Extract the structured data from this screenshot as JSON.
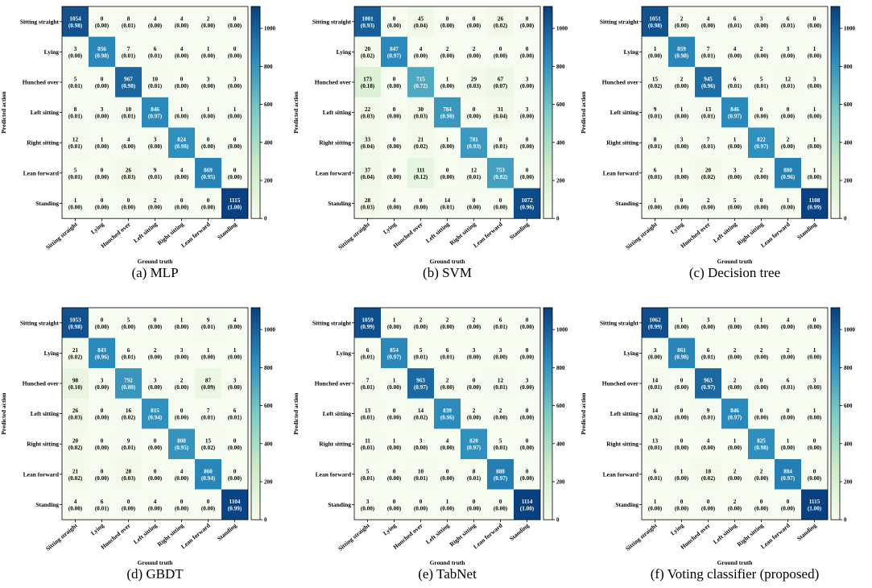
{
  "chart_data": {
    "type": "heatmap",
    "class_labels": [
      "Sitting straight",
      "Lying",
      "Hunched over",
      "Left sitting",
      "Right sitting",
      "Lean forward",
      "Standing"
    ],
    "xlabel": "Ground truth",
    "ylabel": "Predicted action",
    "colorbar": {
      "min": 0,
      "max": 1115,
      "ticks": [
        0,
        200,
        400,
        600,
        800,
        1000
      ],
      "colors": [
        "#f7fcf0",
        "#ccebc5",
        "#7bccc4",
        "#2b8cbe",
        "#084081"
      ]
    },
    "panels": [
      {
        "caption": "(a) MLP",
        "counts": [
          [
            1054,
            0,
            8,
            4,
            4,
            2,
            0
          ],
          [
            3,
            856,
            7,
            6,
            4,
            1,
            0
          ],
          [
            5,
            0,
            967,
            10,
            0,
            3,
            3
          ],
          [
            8,
            3,
            10,
            846,
            1,
            1,
            1
          ],
          [
            12,
            1,
            4,
            3,
            824,
            0,
            0
          ],
          [
            5,
            0,
            26,
            9,
            4,
            869,
            0
          ],
          [
            1,
            0,
            0,
            2,
            0,
            0,
            1115
          ]
        ],
        "rates": [
          [
            "0.98",
            "0.00",
            "0.01",
            "0.00",
            "0.00",
            "0.00",
            "0.00"
          ],
          [
            "0.00",
            "0.98",
            "0.01",
            "0.01",
            "0.00",
            "0.00",
            "0.00"
          ],
          [
            "0.01",
            "0.00",
            "0.98",
            "0.01",
            "0.00",
            "0.00",
            "0.00"
          ],
          [
            "0.01",
            "0.00",
            "0.01",
            "0.97",
            "0.00",
            "0.00",
            "0.00"
          ],
          [
            "0.01",
            "0.00",
            "0.00",
            "0.00",
            "0.98",
            "0.00",
            "0.00"
          ],
          [
            "0.01",
            "0.00",
            "0.03",
            "0.01",
            "0.00",
            "0.95",
            "0.00"
          ],
          [
            "0.00",
            "0.00",
            "0.00",
            "0.00",
            "0.00",
            "0.00",
            "1.00"
          ]
        ]
      },
      {
        "caption": "(b) SVM",
        "counts": [
          [
            1001,
            0,
            45,
            0,
            0,
            26,
            0
          ],
          [
            20,
            847,
            4,
            2,
            2,
            0,
            0
          ],
          [
            173,
            0,
            715,
            1,
            29,
            67,
            3
          ],
          [
            22,
            0,
            30,
            784,
            0,
            31,
            3
          ],
          [
            33,
            0,
            21,
            1,
            781,
            8,
            0
          ],
          [
            37,
            0,
            111,
            0,
            12,
            753,
            0
          ],
          [
            28,
            4,
            0,
            14,
            0,
            0,
            1072
          ]
        ],
        "rates": [
          [
            "0.93",
            "0.00",
            "0.04",
            "0.00",
            "0.00",
            "0.02",
            "0.00"
          ],
          [
            "0.02",
            "0.97",
            "0.00",
            "0.00",
            "0.00",
            "0.00",
            "0.00"
          ],
          [
            "0.18",
            "0.00",
            "0.72",
            "0.00",
            "0.03",
            "0.07",
            "0.00"
          ],
          [
            "0.03",
            "0.00",
            "0.03",
            "0.90",
            "0.00",
            "0.04",
            "0.00"
          ],
          [
            "0.04",
            "0.00",
            "0.02",
            "0.00",
            "0.93",
            "0.01",
            "0.00"
          ],
          [
            "0.04",
            "0.00",
            "0.12",
            "0.00",
            "0.01",
            "0.82",
            "0.00"
          ],
          [
            "0.03",
            "0.00",
            "0.00",
            "0.01",
            "0.00",
            "0.00",
            "0.96"
          ]
        ]
      },
      {
        "caption": "(c) Decision tree",
        "counts": [
          [
            1051,
            2,
            4,
            6,
            3,
            6,
            0
          ],
          [
            1,
            859,
            7,
            4,
            2,
            3,
            1
          ],
          [
            15,
            2,
            945,
            6,
            5,
            12,
            3
          ],
          [
            9,
            1,
            13,
            846,
            0,
            0,
            1
          ],
          [
            8,
            3,
            7,
            1,
            822,
            2,
            1
          ],
          [
            6,
            1,
            20,
            3,
            2,
            880,
            1
          ],
          [
            1,
            0,
            2,
            5,
            0,
            1,
            1108
          ]
        ],
        "rates": [
          [
            "0.98",
            "0.00",
            "0.00",
            "0.01",
            "0.00",
            "0.01",
            "0.00"
          ],
          [
            "0.00",
            "0.98",
            "0.01",
            "0.00",
            "0.00",
            "0.00",
            "0.00"
          ],
          [
            "0.02",
            "0.00",
            "0.96",
            "0.01",
            "0.01",
            "0.01",
            "0.00"
          ],
          [
            "0.01",
            "0.00",
            "0.01",
            "0.97",
            "0.00",
            "0.00",
            "0.00"
          ],
          [
            "0.01",
            "0.00",
            "0.01",
            "0.00",
            "0.97",
            "0.00",
            "0.00"
          ],
          [
            "0.01",
            "0.00",
            "0.02",
            "0.00",
            "0.00",
            "0.96",
            "0.00"
          ],
          [
            "0.00",
            "0.00",
            "0.00",
            "0.00",
            "0.00",
            "0.00",
            "0.99"
          ]
        ]
      },
      {
        "caption": "(d) GBDT",
        "counts": [
          [
            1053,
            0,
            5,
            0,
            1,
            9,
            4
          ],
          [
            21,
            843,
            6,
            2,
            3,
            1,
            1
          ],
          [
            98,
            3,
            792,
            3,
            2,
            87,
            3
          ],
          [
            26,
            0,
            16,
            815,
            0,
            7,
            6
          ],
          [
            20,
            0,
            9,
            0,
            800,
            15,
            0
          ],
          [
            21,
            0,
            28,
            0,
            4,
            860,
            0
          ],
          [
            4,
            6,
            0,
            4,
            0,
            0,
            1104
          ]
        ],
        "rates": [
          [
            "0.98",
            "0.00",
            "0.00",
            "0.00",
            "0.00",
            "0.01",
            "0.00"
          ],
          [
            "0.02",
            "0.96",
            "0.01",
            "0.00",
            "0.00",
            "0.00",
            "0.00"
          ],
          [
            "0.10",
            "0.00",
            "0.80",
            "0.00",
            "0.00",
            "0.09",
            "0.00"
          ],
          [
            "0.03",
            "0.00",
            "0.02",
            "0.94",
            "0.00",
            "0.01",
            "0.01"
          ],
          [
            "0.02",
            "0.00",
            "0.01",
            "0.00",
            "0.95",
            "0.02",
            "0.00"
          ],
          [
            "0.02",
            "0.00",
            "0.03",
            "0.00",
            "0.00",
            "0.94",
            "0.00"
          ],
          [
            "0.00",
            "0.01",
            "0.00",
            "0.00",
            "0.00",
            "0.00",
            "0.99"
          ]
        ]
      },
      {
        "caption": "(e) TabNet",
        "counts": [
          [
            1059,
            1,
            2,
            2,
            2,
            6,
            0
          ],
          [
            6,
            854,
            5,
            6,
            3,
            3,
            0
          ],
          [
            7,
            1,
            963,
            2,
            0,
            12,
            3
          ],
          [
            13,
            0,
            14,
            839,
            2,
            2,
            0
          ],
          [
            11,
            1,
            3,
            4,
            820,
            5,
            0
          ],
          [
            5,
            0,
            10,
            0,
            8,
            888,
            0
          ],
          [
            3,
            0,
            0,
            1,
            0,
            0,
            1114
          ]
        ],
        "rates": [
          [
            "0.99",
            "0.00",
            "0.00",
            "0.00",
            "0.00",
            "0.01",
            "0.00"
          ],
          [
            "0.01",
            "0.97",
            "0.01",
            "0.01",
            "0.00",
            "0.00",
            "0.00"
          ],
          [
            "0.01",
            "0.00",
            "0.97",
            "0.00",
            "0.00",
            "0.01",
            "0.00"
          ],
          [
            "0.01",
            "0.00",
            "0.02",
            "0.96",
            "0.00",
            "0.00",
            "0.00"
          ],
          [
            "0.01",
            "0.00",
            "0.00",
            "0.00",
            "0.97",
            "0.01",
            "0.00"
          ],
          [
            "0.01",
            "0.00",
            "0.01",
            "0.00",
            "0.01",
            "0.97",
            "0.00"
          ],
          [
            "0.00",
            "0.00",
            "0.00",
            "0.00",
            "0.00",
            "0.00",
            "1.00"
          ]
        ]
      },
      {
        "caption": "(f) Voting classifier (proposed)",
        "counts": [
          [
            1062,
            1,
            3,
            1,
            1,
            4,
            0
          ],
          [
            3,
            861,
            6,
            2,
            2,
            2,
            1
          ],
          [
            14,
            0,
            963,
            2,
            0,
            6,
            3
          ],
          [
            14,
            0,
            9,
            846,
            0,
            0,
            1
          ],
          [
            13,
            0,
            4,
            1,
            825,
            1,
            0
          ],
          [
            6,
            1,
            18,
            2,
            2,
            884,
            0
          ],
          [
            1,
            0,
            0,
            2,
            0,
            0,
            1115
          ]
        ],
        "rates": [
          [
            "0.99",
            "0.00",
            "0.00",
            "0.00",
            "0.00",
            "0.00",
            "0.00"
          ],
          [
            "0.00",
            "0.98",
            "0.01",
            "0.00",
            "0.00",
            "0.00",
            "0.00"
          ],
          [
            "0.01",
            "0.00",
            "0.97",
            "0.00",
            "0.00",
            "0.01",
            "0.00"
          ],
          [
            "0.02",
            "0.00",
            "0.01",
            "0.97",
            "0.00",
            "0.00",
            "0.00"
          ],
          [
            "0.01",
            "0.00",
            "0.00",
            "0.00",
            "0.98",
            "0.00",
            "0.00"
          ],
          [
            "0.01",
            "0.00",
            "0.02",
            "0.00",
            "0.00",
            "0.97",
            "0.00"
          ],
          [
            "0.00",
            "0.00",
            "0.00",
            "0.00",
            "0.00",
            "0.00",
            "1.00"
          ]
        ]
      }
    ]
  }
}
